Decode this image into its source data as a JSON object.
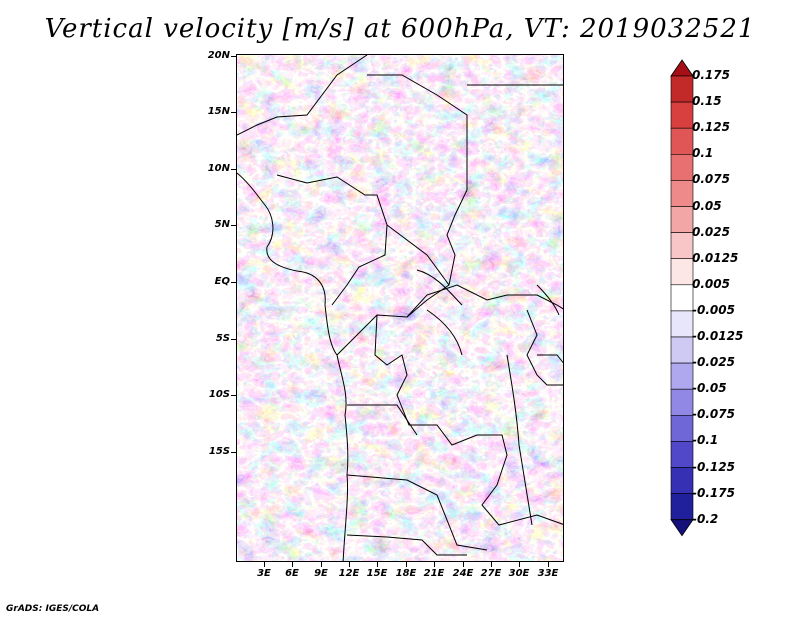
{
  "title": "Vertical velocity [m/s] at 600hPa, VT: 2019032521",
  "credit": "GrADS: IGES/COLA",
  "lat_labels": [
    "20N",
    "15N",
    "10N",
    "5N",
    "EQ",
    "5S",
    "10S",
    "15S"
  ],
  "lon_labels": [
    "3E",
    "6E",
    "9E",
    "12E",
    "15E",
    "18E",
    "21E",
    "24E",
    "27E",
    "30E",
    "33E"
  ],
  "colorbar": {
    "labels": [
      "0.175",
      "0.15",
      "0.125",
      "0.1",
      "0.075",
      "0.05",
      "0.025",
      "0.0125",
      "0.005",
      "-0.005",
      "-0.0125",
      "-0.025",
      "-0.05",
      "-0.075",
      "-0.1",
      "-0.125",
      "-0.175",
      "-0.2"
    ],
    "colors": [
      "#a50f15",
      "#c22a2a",
      "#d83f3f",
      "#e05656",
      "#e87070",
      "#ee8a8a",
      "#f3a6a6",
      "#f8c6c6",
      "#fde6e6",
      "#ffffff",
      "#e8e6fa",
      "#cfcaf4",
      "#b0a8ee",
      "#9088e4",
      "#6f66d8",
      "#5048c8",
      "#3530b4",
      "#21209c",
      "#14117a"
    ]
  },
  "field_colors": {
    "up": "#3b3bd0",
    "down": "#d84040"
  }
}
